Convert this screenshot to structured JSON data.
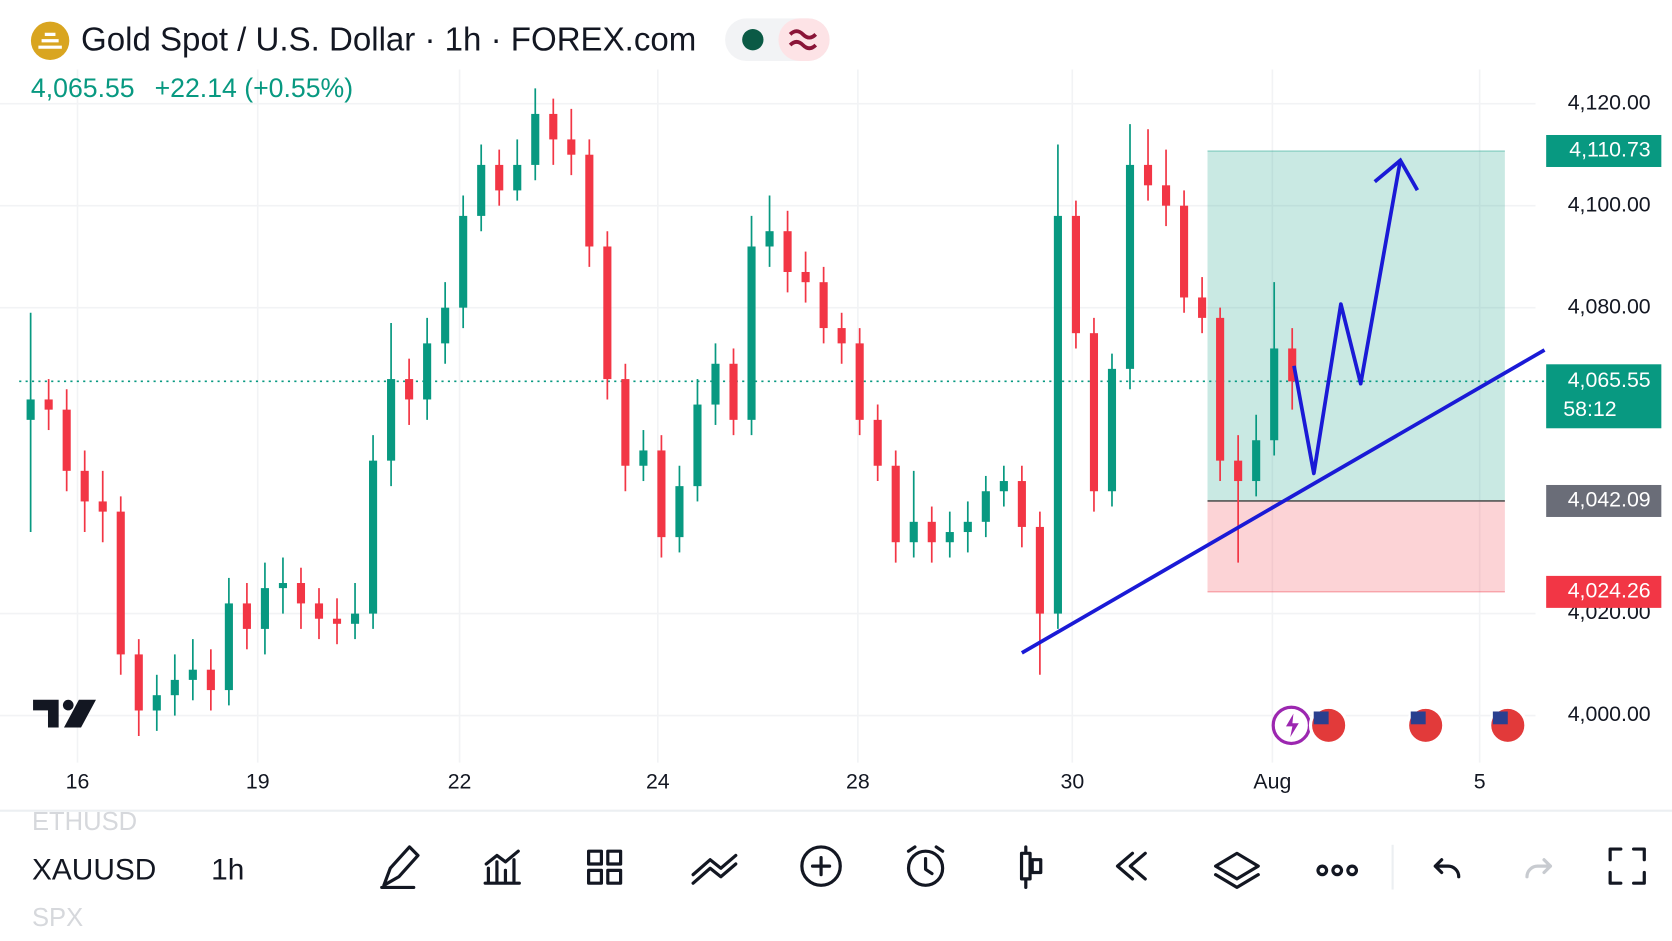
{
  "header": {
    "title": "Gold Spot / U.S. Dollar · 1h · FOREX.com",
    "price": "4,065.55",
    "change": "+22.14 (+0.55%)"
  },
  "toolbar": {
    "symbol": "XAUUSD",
    "interval": "1h",
    "watchlist": [
      "ETHUSD",
      "SPX"
    ]
  },
  "chart_data": {
    "type": "candlestick",
    "up_color": "#089981",
    "down_color": "#f23645",
    "grid": true,
    "open": [
      4058,
      4062,
      4060,
      4048,
      4042,
      4040,
      4012,
      4001,
      4004,
      4007,
      4009,
      4005,
      4022,
      4017,
      4025,
      4026,
      4022,
      4019,
      4018,
      4020,
      4050,
      4066,
      4062,
      4073,
      4080,
      4098,
      4108,
      4103,
      4108,
      4118,
      4113,
      4110,
      4092,
      4066,
      4049,
      4052,
      4035,
      4045,
      4061,
      4069,
      4058,
      4092,
      4095,
      4087,
      4085,
      4076,
      4073,
      4058,
      4049,
      4034,
      4038,
      4034,
      4036,
      4038,
      4044,
      4046,
      4037,
      4020,
      4098,
      4075,
      4044,
      4068,
      4108,
      4104,
      4100,
      4082,
      4078,
      4050,
      4046,
      4054,
      4072
    ],
    "high": [
      4079,
      4066,
      4064,
      4052,
      4048,
      4043,
      4015,
      4008,
      4012,
      4015,
      4013,
      4027,
      4026,
      4030,
      4031,
      4029,
      4025,
      4023,
      4026,
      4055,
      4077,
      4070,
      4078,
      4085,
      4102,
      4112,
      4111,
      4113,
      4123,
      4121,
      4119,
      4113,
      4095,
      4069,
      4056,
      4055,
      4049,
      4066,
      4073,
      4072,
      4098,
      4102,
      4099,
      4091,
      4088,
      4079,
      4076,
      4061,
      4052,
      4048,
      4041,
      4040,
      4042,
      4047,
      4049,
      4049,
      4040,
      4112,
      4101,
      4078,
      4071,
      4116,
      4115,
      4111,
      4103,
      4086,
      4080,
      4055,
      4059,
      4085,
      4076
    ],
    "low": [
      4036,
      4056,
      4044,
      4036,
      4034,
      4008,
      3996,
      3997,
      4000,
      4003,
      4001,
      4002,
      4013,
      4012,
      4020,
      4017,
      4015,
      4014,
      4015,
      4017,
      4045,
      4057,
      4058,
      4069,
      4076,
      4095,
      4100,
      4101,
      4105,
      4108,
      4106,
      4088,
      4062,
      4044,
      4046,
      4031,
      4032,
      4042,
      4057,
      4055,
      4055,
      4088,
      4083,
      4081,
      4073,
      4069,
      4055,
      4046,
      4030,
      4031,
      4030,
      4031,
      4032,
      4035,
      4041,
      4033,
      4008,
      4017,
      4072,
      4040,
      4041,
      4064,
      4101,
      4096,
      4079,
      4075,
      4046,
      4030,
      4043,
      4051,
      4060
    ],
    "close": [
      4062,
      4060,
      4048,
      4042,
      4040,
      4012,
      4001,
      4004,
      4007,
      4009,
      4005,
      4022,
      4017,
      4025,
      4026,
      4022,
      4019,
      4018,
      4020,
      4050,
      4066,
      4062,
      4073,
      4080,
      4098,
      4108,
      4103,
      4108,
      4118,
      4113,
      4110,
      4092,
      4066,
      4049,
      4052,
      4035,
      4045,
      4061,
      4069,
      4058,
      4092,
      4095,
      4087,
      4085,
      4076,
      4073,
      4058,
      4049,
      4034,
      4038,
      4034,
      4036,
      4038,
      4044,
      4046,
      4037,
      4020,
      4098,
      4075,
      4044,
      4068,
      4108,
      4104,
      4100,
      4082,
      4078,
      4050,
      4046,
      4054,
      4072,
      4065.55
    ],
    "xlim": [
      -1.7,
      83.5
    ],
    "xticks": [
      {
        "value": 2.6,
        "label": "16"
      },
      {
        "value": 12.6,
        "label": "19"
      },
      {
        "value": 23.8,
        "label": "22"
      },
      {
        "value": 34.8,
        "label": "24"
      },
      {
        "value": 45.9,
        "label": "28"
      },
      {
        "value": 57.8,
        "label": "30"
      },
      {
        "value": 68.9,
        "label": "Aug"
      },
      {
        "value": 80.4,
        "label": "5"
      }
    ],
    "ylim": [
      3982.4,
      4126.7
    ],
    "yticks": [
      {
        "value": 4000,
        "label": "4,000.00"
      },
      {
        "value": 4020,
        "label": "4,020.00"
      },
      {
        "value": 4080,
        "label": "4,080.00"
      },
      {
        "value": 4100,
        "label": "4,100.00"
      },
      {
        "value": 4120,
        "label": "4,120.00"
      }
    ],
    "last_price": {
      "value": 4065.55,
      "label": "4,065.55"
    },
    "countdown": "58:12",
    "position": {
      "target": {
        "value": 4110.73,
        "label": "4,110.73"
      },
      "entry": {
        "value": 4042.09,
        "label": "4,042.09"
      },
      "stop": {
        "value": 4024.26,
        "label": "4,024.26"
      },
      "x": [
        65.3,
        81.8
      ]
    },
    "trendline": {
      "color": "#1a1ad6",
      "x": [
        55.0,
        84.0
      ],
      "y": [
        4012.3,
        4071.7
      ]
    },
    "projection": {
      "color": "#1a1ad6",
      "x": [
        70.1,
        71.2,
        72.7,
        73.8,
        76.0
      ],
      "y": [
        4068.6,
        4047.5,
        4080.7,
        4065.1,
        4108.9
      ]
    }
  }
}
